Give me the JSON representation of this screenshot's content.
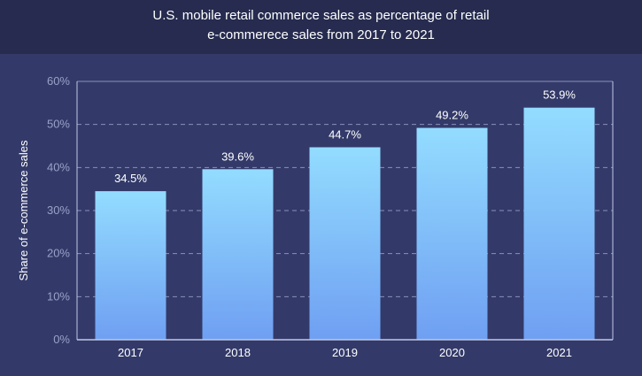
{
  "header": {
    "title_line1": "U.S. mobile retail commerce sales as percentage of retail",
    "title_line2": "e-commerece sales from 2017 to 2021"
  },
  "colors": {
    "background": "#333a69",
    "title_band": "#262b4f",
    "bar_top": "#93dcff",
    "bar_bottom": "#6f9ff2",
    "grid": "#8a90b8",
    "axis": "#c3c7e6"
  },
  "chart_data": {
    "type": "bar",
    "title": "U.S. mobile retail commerce sales as percentage of retail e-commerece sales from 2017 to 2021",
    "xlabel": "",
    "ylabel": "Share of e-commerce sales",
    "categories": [
      "2017",
      "2018",
      "2019",
      "2020",
      "2021"
    ],
    "values": [
      34.5,
      39.6,
      44.7,
      49.2,
      53.9
    ],
    "value_labels": [
      "34.5%",
      "39.6%",
      "44.7%",
      "49.2%",
      "53.9%"
    ],
    "ylim": [
      0,
      60
    ],
    "yticks": [
      0,
      10,
      20,
      30,
      40,
      50,
      60
    ],
    "ytick_labels": [
      "0%",
      "10%",
      "20%",
      "30%",
      "40%",
      "50%",
      "60%"
    ],
    "grid": true
  }
}
